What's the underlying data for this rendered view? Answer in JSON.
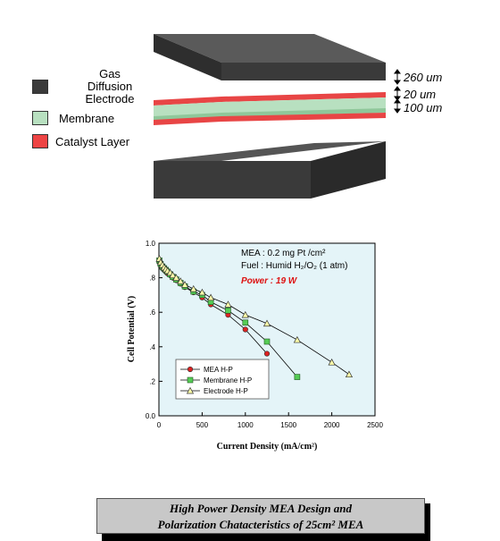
{
  "legend": {
    "gde_label": "Gas Diffusion Electrode",
    "membrane_label": "Membrane",
    "catalyst_label": "Catalyst Layer",
    "colors": {
      "gde": "#3a3a3a",
      "membrane": "#b8e0c0",
      "catalyst": "#ee4444"
    }
  },
  "dimensions": {
    "gde": "260 um",
    "catalyst": "20 um",
    "membrane": "100 um"
  },
  "chart_data": {
    "type": "line",
    "xlabel": "Current Density (mA/cm²)",
    "ylabel": "Cell Potential (V)",
    "xlim": [
      0,
      2500
    ],
    "ylim": [
      0,
      1.0
    ],
    "x_ticks": [
      "0",
      "500",
      "1000",
      "1500",
      "2000",
      "2500"
    ],
    "y_ticks": [
      "0.0",
      ".2",
      ".4",
      ".6",
      ".8",
      "1.0"
    ],
    "annotation_lines": [
      "MEA : 0.2 mg Pt /cm²",
      "Fuel : Humid H₂/O₂ (1 atm)"
    ],
    "highlight": "Power : 19 W",
    "legend_position": "bottom-left",
    "series": [
      {
        "name": "MEA H-P",
        "marker": "circle",
        "color": "#dd2222",
        "x": [
          5,
          20,
          40,
          60,
          80,
          100,
          130,
          160,
          200,
          250,
          300,
          400,
          500,
          600,
          800,
          1000,
          1250
        ],
        "y": [
          0.89,
          0.87,
          0.855,
          0.845,
          0.835,
          0.825,
          0.815,
          0.8,
          0.785,
          0.765,
          0.745,
          0.715,
          0.685,
          0.645,
          0.585,
          0.5,
          0.36
        ]
      },
      {
        "name": "Membrane H-P",
        "marker": "square",
        "color": "#55cc55",
        "x": [
          5,
          20,
          40,
          60,
          80,
          100,
          130,
          160,
          200,
          250,
          300,
          400,
          500,
          600,
          800,
          1000,
          1250,
          1600
        ],
        "y": [
          0.9,
          0.88,
          0.865,
          0.855,
          0.845,
          0.835,
          0.82,
          0.805,
          0.79,
          0.77,
          0.75,
          0.72,
          0.7,
          0.66,
          0.61,
          0.54,
          0.43,
          0.225
        ]
      },
      {
        "name": "Electrode H-P",
        "marker": "triangle",
        "color": "#ffffaa",
        "x": [
          5,
          20,
          40,
          60,
          80,
          100,
          130,
          160,
          200,
          250,
          300,
          400,
          500,
          600,
          800,
          1000,
          1250,
          1600,
          2000,
          2200
        ],
        "y": [
          0.91,
          0.89,
          0.875,
          0.86,
          0.85,
          0.84,
          0.83,
          0.815,
          0.8,
          0.78,
          0.76,
          0.735,
          0.715,
          0.685,
          0.645,
          0.585,
          0.535,
          0.44,
          0.31,
          0.24
        ]
      }
    ]
  },
  "caption": {
    "line1": "High Power Density MEA Design and",
    "line2": "Polarization Chatacteristics of 25cm² MEA"
  }
}
